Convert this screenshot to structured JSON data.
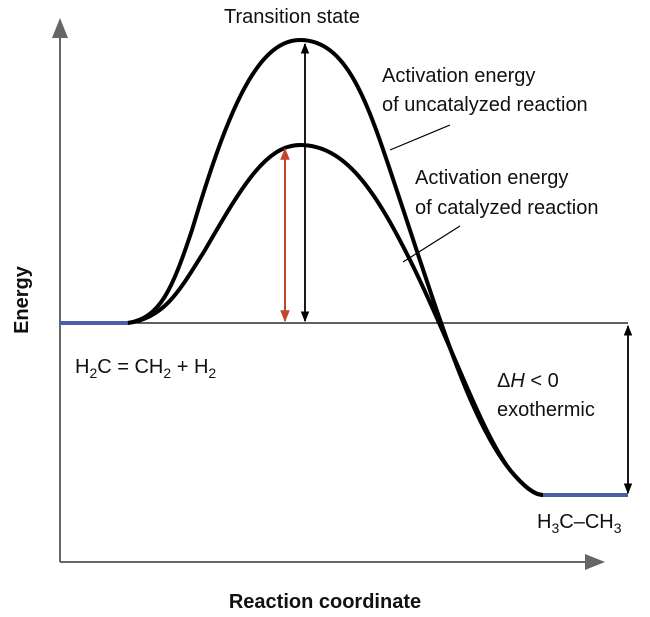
{
  "diagram": {
    "axes": {
      "y_label": "Energy",
      "x_label": "Reaction coordinate"
    },
    "transition_state": "Transition state",
    "uncatalyzed": {
      "line1": "Activation energy",
      "line2": "of uncatalyzed reaction"
    },
    "catalyzed": {
      "line1": "Activation energy",
      "line2": "of catalyzed reaction"
    },
    "reactants": [
      {
        "text": "H"
      },
      {
        "text": "2",
        "sub": true
      },
      {
        "text": "C = CH"
      },
      {
        "text": "2",
        "sub": true
      },
      {
        "text": " + H"
      },
      {
        "text": "2",
        "sub": true
      }
    ],
    "enthalpy": [
      {
        "text": "Δ"
      },
      {
        "text": "H",
        "italic": true
      },
      {
        "text": " < 0"
      }
    ],
    "enthalpy_note": "exothermic",
    "products": [
      {
        "text": "H"
      },
      {
        "text": "3",
        "sub": true
      },
      {
        "text": "C–CH"
      },
      {
        "text": "3",
        "sub": true
      }
    ]
  }
}
